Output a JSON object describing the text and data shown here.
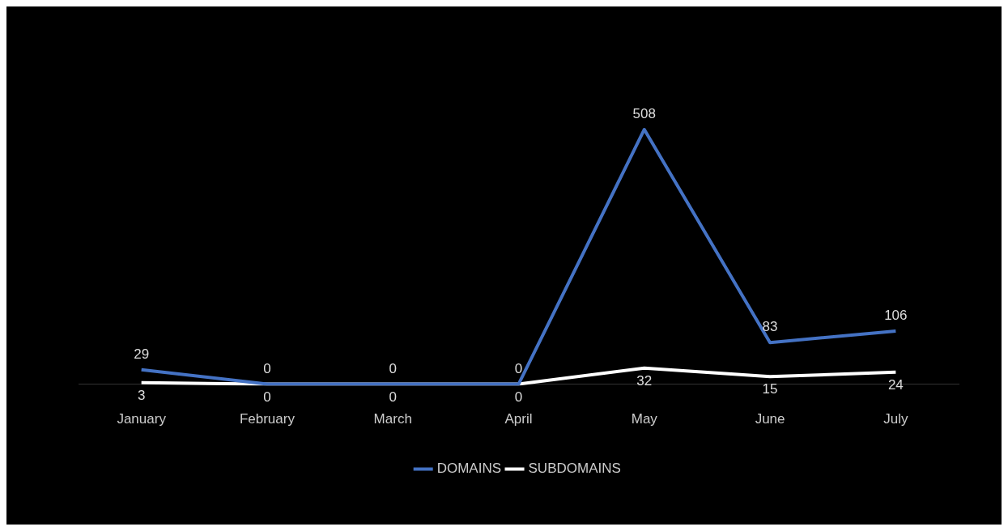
{
  "chart_data": {
    "type": "line",
    "categories": [
      "January",
      "February",
      "March",
      "April",
      "May",
      "June",
      "July"
    ],
    "series": [
      {
        "name": "DOMAINS",
        "color": "#4472c4",
        "values": [
          29,
          0,
          0,
          0,
          508,
          83,
          106
        ]
      },
      {
        "name": "SUBDOMAINS",
        "color": "#ffffff",
        "values": [
          3,
          0,
          0,
          0,
          32,
          15,
          24
        ]
      }
    ],
    "data_labels": true,
    "legend": "bottom",
    "grid": false,
    "marker": "none",
    "line_style": "solid"
  }
}
